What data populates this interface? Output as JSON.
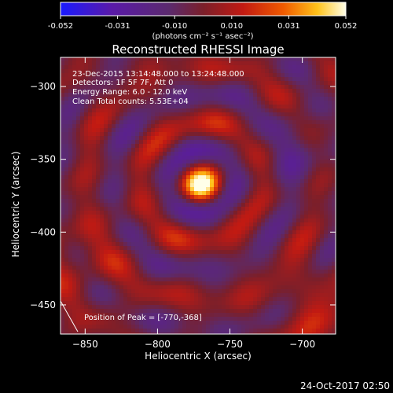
{
  "colorbar": {
    "ticks": [
      "-0.052",
      "-0.031",
      "-0.010",
      "0.010",
      "0.031",
      "0.052"
    ],
    "units_line": "(photons cm⁻² s⁻¹ asec⁻²)"
  },
  "chart_data": {
    "type": "heatmap",
    "title": "Reconstructed RHESSI Image",
    "xlabel": "Heliocentric X (arcsec)",
    "ylabel": "Heliocentric Y (arcsec)",
    "xlim": [
      -867,
      -677
    ],
    "ylim": [
      -470,
      -280
    ],
    "xticks": [
      -850,
      -800,
      -750,
      -700
    ],
    "yticks": [
      -300,
      -350,
      -400,
      -450
    ],
    "colorbar_range": [
      -0.052,
      0.052
    ],
    "peak_position": [
      -770,
      -368
    ],
    "annotations": [
      "23-Dec-2015 13:14:48.000 to 13:24:48.000",
      "Detectors: 1F 5F 7F, Att 0",
      "Energy Range: 6.0 - 12.0 keV",
      "Clean    Total counts: 5.53E+04",
      "Position of Peak = [-770,-368]"
    ]
  },
  "footer": {
    "timestamp": "24-Oct-2017 02:50"
  }
}
